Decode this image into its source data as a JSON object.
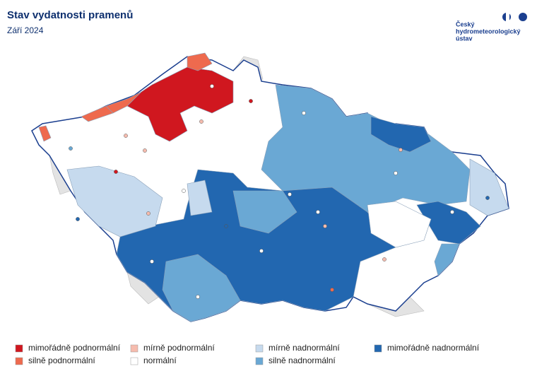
{
  "header": {
    "title": "Stav vydatnosti pramenů",
    "subtitle": "Září 2024"
  },
  "logo": {
    "lines": [
      "Český",
      "hydrometeorologický",
      "ústav"
    ]
  },
  "legend": {
    "items": [
      {
        "label": "mimořádně podnormální",
        "color": "#d0171f"
      },
      {
        "label": "silně podnormální",
        "color": "#ee6a4e"
      },
      {
        "label": "mírně podnormální",
        "color": "#f6bcae"
      },
      {
        "label": "normální",
        "color": "#ffffff"
      },
      {
        "label": "mírně nadnormální",
        "color": "#c6daee"
      },
      {
        "label": "silně nadnormální",
        "color": "#6aa8d4"
      },
      {
        "label": "mimořádně nadnormální",
        "color": "#2267b0"
      }
    ]
  }
}
